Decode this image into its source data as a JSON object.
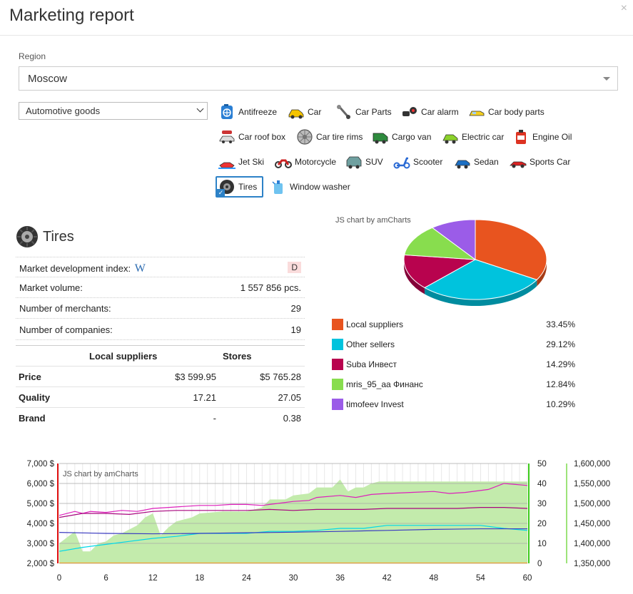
{
  "header": {
    "title": "Marketing report",
    "close_glyph": "×"
  },
  "region": {
    "label": "Region",
    "value": "Moscow"
  },
  "category": {
    "value": "Automotive goods"
  },
  "vehicles": [
    {
      "label": "Antifreeze",
      "icon": "antifreeze-icon",
      "selected": false
    },
    {
      "label": "Car",
      "icon": "car-icon",
      "selected": false
    },
    {
      "label": "Car Parts",
      "icon": "car-parts-icon",
      "selected": false
    },
    {
      "label": "Car alarm",
      "icon": "car-alarm-icon",
      "selected": false
    },
    {
      "label": "Car body parts",
      "icon": "car-body-parts-icon",
      "selected": false
    },
    {
      "label": "Car roof box",
      "icon": "car-roof-box-icon",
      "selected": false
    },
    {
      "label": "Car tire rims",
      "icon": "tire-rim-icon",
      "selected": false
    },
    {
      "label": "Cargo van",
      "icon": "cargo-van-icon",
      "selected": false
    },
    {
      "label": "Electric car",
      "icon": "electric-car-icon",
      "selected": false
    },
    {
      "label": "Engine Oil",
      "icon": "engine-oil-icon",
      "selected": false
    },
    {
      "label": "Jet Ski",
      "icon": "jet-ski-icon",
      "selected": false
    },
    {
      "label": "Motorcycle",
      "icon": "motorcycle-icon",
      "selected": false
    },
    {
      "label": "SUV",
      "icon": "suv-icon",
      "selected": false
    },
    {
      "label": "Scooter",
      "icon": "scooter-icon",
      "selected": false
    },
    {
      "label": "Sedan",
      "icon": "sedan-icon",
      "selected": false
    },
    {
      "label": "Sports Car",
      "icon": "sports-car-icon",
      "selected": false
    },
    {
      "label": "Tires",
      "icon": "tires-icon",
      "selected": true
    },
    {
      "label": "Window washer",
      "icon": "window-washer-icon",
      "selected": false
    }
  ],
  "product": {
    "title": "Tires",
    "icon": "tire-icon",
    "stats": [
      {
        "label": "Market development index:",
        "value": "D",
        "extra": "W"
      },
      {
        "label": "Market volume:",
        "value": "1 557 856 pcs."
      },
      {
        "label": "Number of merchants:",
        "value": "29"
      },
      {
        "label": "Number of companies:",
        "value": "19"
      }
    ],
    "comparison": {
      "headers": [
        "",
        "Local suppliers",
        "Stores"
      ],
      "rows": [
        [
          "Price",
          "$3 599.95",
          "$5 765.28"
        ],
        [
          "Quality",
          "17.21",
          "27.05"
        ],
        [
          "Brand",
          "-",
          "0.38"
        ]
      ]
    }
  },
  "chart_data": [
    {
      "type": "pie",
      "watermark": "JS chart by amCharts",
      "slices": [
        {
          "name": "Local suppliers",
          "value": 33.45,
          "label": "33.45%",
          "color": "#e8541f"
        },
        {
          "name": "Other sellers",
          "value": 29.12,
          "label": "29.12%",
          "color": "#00c3dd"
        },
        {
          "name": "Suba Инвест",
          "value": 14.29,
          "label": "14.29%",
          "color": "#b8034e"
        },
        {
          "name": "mris_95_aa Финанс",
          "value": 12.84,
          "label": "12.84%",
          "color": "#88dd4e"
        },
        {
          "name": "timofeev Invest",
          "value": 10.29,
          "label": "10.29%",
          "color": "#9b5ce8"
        }
      ]
    },
    {
      "type": "line",
      "watermark": "JS chart by amCharts",
      "x_ticks": [
        "0",
        "6",
        "12",
        "18",
        "24",
        "30",
        "36",
        "42",
        "48",
        "54",
        "60"
      ],
      "xlim": [
        0,
        60
      ],
      "y_left_ticks": [
        "7,000 $",
        "6,000 $",
        "5,000 $",
        "4,000 $",
        "3,000 $",
        "2,000 $"
      ],
      "y_left_lim": [
        2000,
        7000
      ],
      "y_mid_ticks": [
        "50",
        "40",
        "30",
        "20",
        "10",
        "0"
      ],
      "y_mid_lim": [
        0,
        50
      ],
      "y_right_ticks": [
        "1,600,000",
        "1,550,000",
        "1,500,000",
        "1,450,000",
        "1,400,000",
        "1,350,000"
      ],
      "y_right_lim": [
        1350000,
        1600000
      ],
      "grid": true,
      "series": [
        {
          "axis": "mid",
          "kind": "area",
          "color": "#c3ebac",
          "x": [
            0,
            2,
            3,
            4,
            5,
            6,
            7,
            8,
            9,
            10,
            11,
            12,
            13,
            14,
            15,
            16,
            17,
            18,
            21,
            24,
            26,
            27,
            29,
            30,
            32,
            33,
            35,
            36,
            37,
            38,
            39,
            40,
            41,
            42,
            45,
            50,
            55,
            60
          ],
          "values": [
            10,
            16,
            6,
            6,
            10,
            11,
            14,
            15,
            17,
            19,
            23,
            25,
            14,
            18,
            21,
            22,
            23,
            25,
            26,
            26,
            28,
            32,
            32,
            34,
            35,
            38,
            38,
            42,
            36,
            38,
            38,
            40,
            41,
            41,
            41,
            41,
            41,
            41
          ]
        },
        {
          "axis": "left",
          "kind": "line",
          "color": "#dd1fbb",
          "x": [
            0,
            2,
            3,
            4,
            6,
            8,
            10,
            12,
            14,
            16,
            18,
            20,
            22,
            24,
            26,
            28,
            30,
            32,
            33,
            36,
            38,
            40,
            42,
            45,
            48,
            50,
            52,
            55,
            57,
            60
          ],
          "values": [
            4400,
            4600,
            4500,
            4600,
            4550,
            4650,
            4600,
            4750,
            4800,
            4850,
            4900,
            4900,
            4950,
            4950,
            4900,
            5000,
            5100,
            5150,
            5300,
            5400,
            5300,
            5450,
            5500,
            5550,
            5600,
            5500,
            5550,
            5700,
            6000,
            5900
          ]
        },
        {
          "axis": "left",
          "kind": "line",
          "color": "#a8057e",
          "x": [
            0,
            3,
            6,
            9,
            12,
            15,
            18,
            21,
            24,
            27,
            30,
            33,
            36,
            39,
            42,
            45,
            48,
            51,
            54,
            57,
            60
          ],
          "values": [
            4300,
            4500,
            4500,
            4450,
            4600,
            4650,
            4650,
            4650,
            4650,
            4700,
            4650,
            4700,
            4700,
            4700,
            4750,
            4750,
            4750,
            4750,
            4800,
            4800,
            4750
          ]
        },
        {
          "axis": "left",
          "kind": "line",
          "color": "#00d8e8",
          "x": [
            0,
            3,
            6,
            9,
            12,
            15,
            18,
            21,
            24,
            27,
            30,
            33,
            36,
            39,
            42,
            45,
            48,
            51,
            54,
            57,
            60
          ],
          "values": [
            2600,
            2800,
            2950,
            3100,
            3250,
            3350,
            3500,
            3500,
            3500,
            3600,
            3600,
            3650,
            3750,
            3750,
            3900,
            3900,
            3900,
            3900,
            3900,
            3750,
            3650
          ]
        },
        {
          "axis": "left",
          "kind": "line",
          "color": "#3a3ac0",
          "x": [
            0,
            6,
            12,
            18,
            24,
            30,
            36,
            42,
            48,
            54,
            60
          ],
          "values": [
            3550,
            3500,
            3480,
            3500,
            3530,
            3560,
            3600,
            3650,
            3700,
            3730,
            3730
          ]
        },
        {
          "axis": "left",
          "kind": "line",
          "color": "#f0a030",
          "x": [
            0,
            60
          ],
          "values": [
            2020,
            2020
          ]
        }
      ]
    }
  ]
}
